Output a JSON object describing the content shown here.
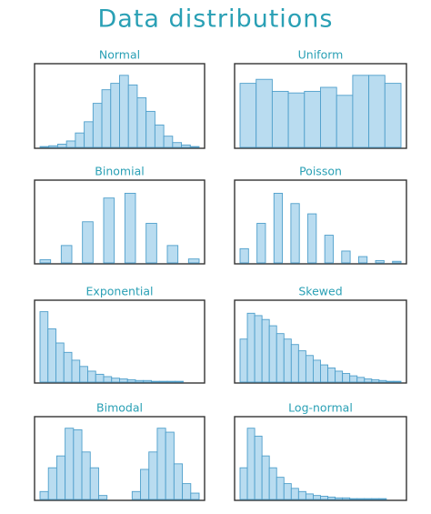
{
  "title": "Data distributions",
  "chart_data": [
    {
      "type": "histogram",
      "title": "Normal",
      "values": [
        1,
        2,
        4,
        8,
        18,
        32,
        55,
        72,
        80,
        90,
        78,
        62,
        45,
        28,
        14,
        6,
        3,
        1
      ],
      "ylim": [
        0,
        100
      ]
    },
    {
      "type": "histogram",
      "title": "Uniform",
      "values": [
        80,
        85,
        70,
        68,
        70,
        75,
        65,
        90,
        90,
        80
      ],
      "ylim": [
        0,
        100
      ]
    },
    {
      "type": "histogram",
      "title": "Binomial",
      "values": [
        4,
        0,
        22,
        0,
        52,
        0,
        82,
        0,
        88,
        0,
        50,
        0,
        22,
        0,
        5
      ],
      "ylim": [
        0,
        100
      ]
    },
    {
      "type": "histogram",
      "title": "Poisson",
      "values": [
        18,
        0,
        50,
        0,
        88,
        0,
        75,
        0,
        62,
        0,
        35,
        0,
        15,
        0,
        8,
        0,
        3,
        0,
        2
      ],
      "ylim": [
        0,
        100
      ]
    },
    {
      "type": "histogram",
      "title": "Exponential",
      "values": [
        90,
        68,
        50,
        38,
        28,
        20,
        14,
        10,
        7,
        5,
        4,
        3,
        2,
        2,
        1,
        1,
        1,
        1,
        0,
        0
      ],
      "ylim": [
        0,
        100
      ]
    },
    {
      "type": "histogram",
      "title": "Skewed",
      "values": [
        55,
        88,
        85,
        80,
        72,
        62,
        55,
        48,
        40,
        34,
        28,
        22,
        18,
        14,
        11,
        8,
        6,
        4,
        3,
        2,
        1,
        1
      ],
      "ylim": [
        0,
        100
      ]
    },
    {
      "type": "histogram",
      "title": "Bimodal",
      "values": [
        10,
        40,
        55,
        90,
        88,
        60,
        40,
        5,
        0,
        0,
        0,
        10,
        38,
        60,
        90,
        85,
        45,
        20,
        8
      ],
      "ylim": [
        0,
        100
      ]
    },
    {
      "type": "histogram",
      "title": "Log-normal",
      "values": [
        40,
        90,
        80,
        55,
        40,
        28,
        20,
        14,
        10,
        7,
        5,
        4,
        3,
        2,
        2,
        1,
        1,
        1,
        1,
        1,
        0,
        0
      ],
      "ylim": [
        0,
        100
      ]
    }
  ]
}
